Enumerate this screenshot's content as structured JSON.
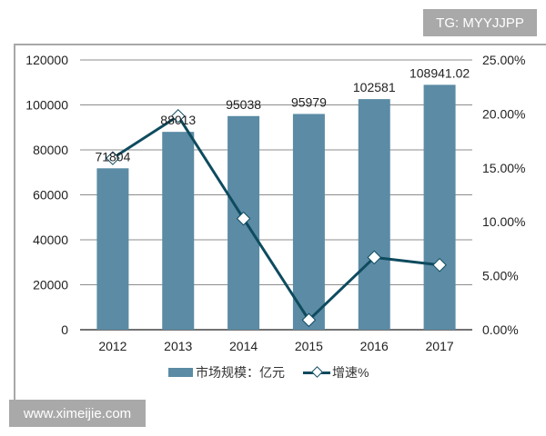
{
  "watermarks": {
    "top": "TG: MYYJJPP",
    "bottom": "www.ximeijie.com"
  },
  "colors": {
    "bar": "#5b8ba5",
    "line": "#0e4b5f",
    "grid": "#8c8c8c"
  },
  "chart_data": {
    "type": "bar+line",
    "categories": [
      "2012",
      "2013",
      "2014",
      "2015",
      "2016",
      "2017"
    ],
    "series": [
      {
        "name": "市场规模：亿元",
        "type": "bar",
        "axis": "left",
        "values": [
          71804,
          88013,
          95038,
          95979,
          102581,
          108941.02
        ],
        "labels": [
          "71804",
          "88013",
          "95038",
          "95979",
          "102581",
          "108941.02"
        ]
      },
      {
        "name": "增速%",
        "type": "line",
        "axis": "right",
        "marker": "diamond",
        "values": [
          15.9,
          19.8,
          10.3,
          0.9,
          6.7,
          6.0
        ]
      }
    ],
    "y_left": {
      "range": [
        0,
        120000
      ],
      "ticks": [
        "0",
        "20000",
        "40000",
        "60000",
        "80000",
        "100000",
        "120000"
      ]
    },
    "y_right": {
      "range": [
        0,
        25
      ],
      "ticks": [
        "0.00%",
        "5.00%",
        "10.00%",
        "15.00%",
        "20.00%",
        "25.00%"
      ]
    },
    "grid": true,
    "legend": "bottom"
  }
}
